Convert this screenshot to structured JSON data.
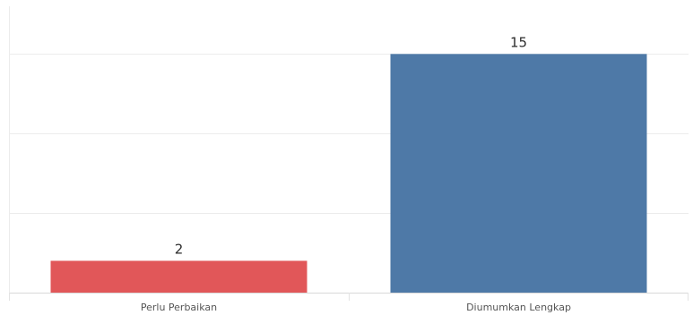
{
  "chart_data": {
    "type": "bar",
    "categories": [
      "Perlu Perbaikan",
      "Diumumkan Lengkap"
    ],
    "values": [
      2,
      15
    ],
    "colors": [
      "#e15759",
      "#4e79a7"
    ],
    "ylim": [
      0,
      18
    ],
    "gridlines": [
      5,
      10,
      15
    ],
    "grid": true,
    "legend": "none",
    "title": "",
    "xlabel": "",
    "ylabel": ""
  }
}
